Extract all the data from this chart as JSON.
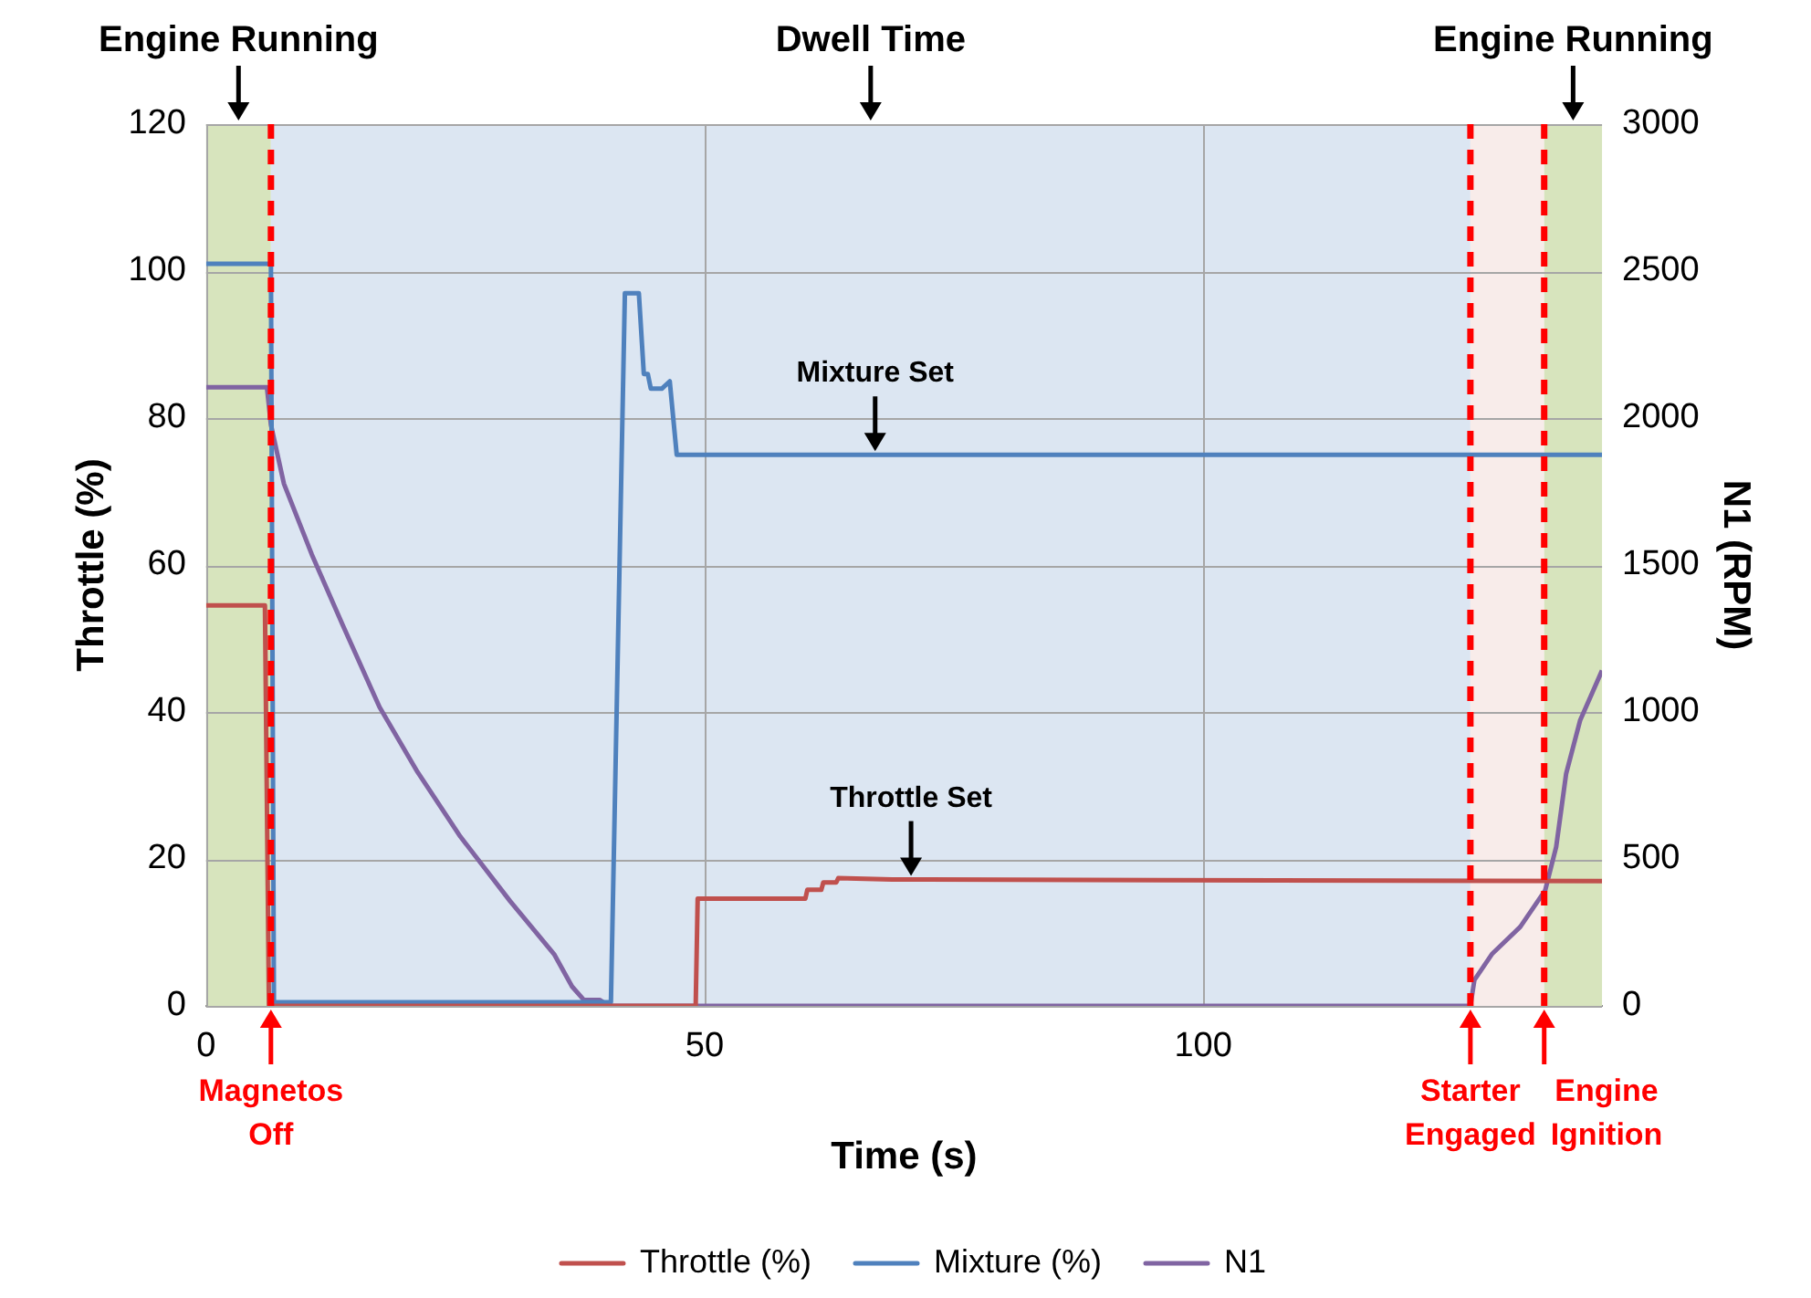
{
  "chart_data": {
    "type": "line",
    "xlabel": "Time (s)",
    "ylabel": "Throttle (%)",
    "y2label": "N1 (RPM)",
    "xlim": [
      0,
      140
    ],
    "xticks": [
      0,
      50,
      100
    ],
    "ylim": [
      0,
      120
    ],
    "yticks": [
      0,
      20,
      40,
      60,
      80,
      100,
      120
    ],
    "y2lim": [
      0,
      3000
    ],
    "y2ticks": [
      0,
      500,
      1000,
      1500,
      2000,
      2500,
      3000
    ],
    "grid": true,
    "legend": "bottom",
    "marker": "none",
    "line_style": "solid",
    "series": [
      {
        "name": "Throttle (%)",
        "color": "#c0504d",
        "x": [
          0,
          5.9,
          6.3,
          49.1,
          49.3,
          60.1,
          60.3,
          61.7,
          61.9,
          63.2,
          63.4,
          68.8,
          140
        ],
        "values": [
          54.5,
          54.5,
          0,
          0,
          14.6,
          14.6,
          15.8,
          15.8,
          16.8,
          16.8,
          17.4,
          17.2,
          17
        ]
      },
      {
        "name": "Mixture (%)",
        "color": "#4f81bd",
        "x": [
          0,
          6.5,
          6.8,
          40.6,
          42,
          43.4,
          43.9,
          44.3,
          44.6,
          45.7,
          46.5,
          47.2,
          47.6,
          140
        ],
        "values": [
          101,
          101,
          0.5,
          0.5,
          97,
          97,
          86,
          86,
          84,
          84,
          85,
          75,
          75,
          75
        ]
      },
      {
        "name": "N1",
        "color": "#8064a2",
        "axis": "y2",
        "x": [
          0,
          6.1,
          6.5,
          7.8,
          10.6,
          13.7,
          17.4,
          21.2,
          25.5,
          30.5,
          34.9,
          36.7,
          37.9,
          39.5,
          40.4,
          126.8,
          127.2,
          129,
          131.8,
          134.3,
          135.4,
          136.4,
          137.8,
          140
        ],
        "values": [
          2105,
          2105,
          1977,
          1777,
          1536,
          1296,
          1016,
          796,
          576,
          356,
          176,
          66,
          20,
          20,
          0,
          0,
          88,
          178,
          269,
          393,
          541,
          790,
          971,
          1141
        ]
      }
    ],
    "bands": [
      {
        "axis": "x",
        "from": 0,
        "to": 6.5,
        "label": "Engine Running",
        "color": "#d7e4bd"
      },
      {
        "axis": "x",
        "from": 6.5,
        "to": 126.8,
        "label": "Dwell Time",
        "color": "#dce6f2"
      },
      {
        "axis": "x",
        "from": 126.8,
        "to": 134.2,
        "label": null,
        "color": "#f8ecea"
      },
      {
        "axis": "x",
        "from": 134.2,
        "to": 140,
        "label": "Engine Running",
        "color": "#d7e4bd"
      }
    ],
    "ref_lines": [
      {
        "axis": "x",
        "value": 6.5,
        "label": "Magnetos Off",
        "color": "#ff0000",
        "line_style": "dashed"
      },
      {
        "axis": "x",
        "value": 126.8,
        "label": "Starter Engaged",
        "color": "#ff0000",
        "line_style": "dashed"
      },
      {
        "axis": "x",
        "value": 134.2,
        "label": "Engine Ignition",
        "color": "#ff0000",
        "line_style": "dashed"
      }
    ],
    "annotations": [
      {
        "text": "Mixture Set",
        "x": 67.1,
        "y": 75
      },
      {
        "text": "Throttle Set",
        "x": 70.7,
        "y": 17.2
      }
    ]
  }
}
